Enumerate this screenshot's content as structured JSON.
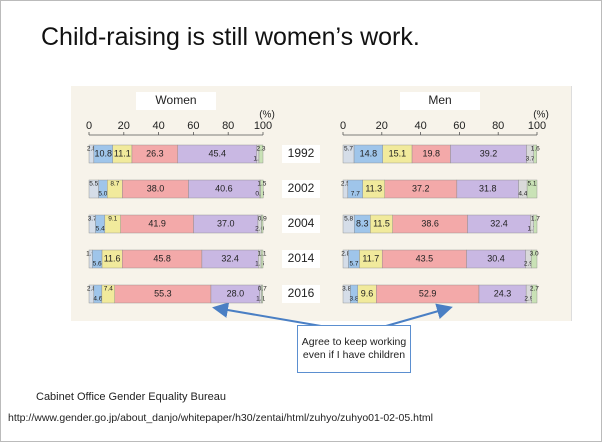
{
  "title": "Child-raising is still women’s work.",
  "annotation": "Agree to keep working even if I have children",
  "source": "Cabinet Office Gender Equality Bureau",
  "url": "http://www.gender.go.jp/about_danjo/whitepaper/h30/zentai/html/zuhyo/zuhyo01-02-05.html",
  "chart_data": {
    "type": "bar",
    "orientation": "horizontal",
    "stacked": true,
    "categories": [
      "1992",
      "2002",
      "2004",
      "2014",
      "2016"
    ],
    "xlim": [
      0,
      100
    ],
    "xticks": [
      0,
      20,
      40,
      60,
      80,
      100
    ],
    "unit": "(%)",
    "colors": [
      "#d5dde8",
      "#9fc5ea",
      "#f1ea9c",
      "#f3a9a9",
      "#c9b8e3",
      "#d9d9d9",
      "#c9e2b6"
    ],
    "panels": [
      {
        "title": "Women",
        "series": [
          {
            "values": [
              2.8,
              5.5,
              3.7,
              1.9,
              2.8
            ]
          },
          {
            "values": [
              10.8,
              5.0,
              5.4,
              5.6,
              4.6
            ],
            "value_labels": [
              "10.8",
              "5.0",
              "5.4",
              "5.6",
              "4.6"
            ]
          },
          {
            "values": [
              11.1,
              8.7,
              9.1,
              11.6,
              7.4
            ]
          },
          {
            "values": [
              26.3,
              38.0,
              41.9,
              45.8,
              55.3
            ],
            "value_labels": [
              "26.3",
              "38.0",
              "41.9",
              "45.8",
              "55.3"
            ]
          },
          {
            "values": [
              45.4,
              40.6,
              37.0,
              32.4,
              28.0
            ],
            "value_labels": [
              "45.4",
              "40.6",
              "37.0",
              "32.4",
              "28.0"
            ]
          },
          {
            "values": [
              1.3,
              0.8,
              2.0,
              1.6,
              1.1
            ],
            "value_labels": [
              "1.3",
              "0.8",
              "2.0",
              "1.6",
              "1.1"
            ]
          },
          {
            "values": [
              2.3,
              1.5,
              0.9,
              1.1,
              0.7
            ]
          }
        ]
      },
      {
        "title": "Men",
        "series": [
          {
            "values": [
              5.7,
              2.5,
              5.8,
              2.8,
              3.8
            ]
          },
          {
            "values": [
              14.8,
              7.7,
              8.3,
              5.7,
              3.8
            ]
          },
          {
            "values": [
              15.1,
              11.3,
              11.5,
              11.7,
              9.6
            ]
          },
          {
            "values": [
              19.8,
              37.2,
              38.6,
              43.5,
              52.9
            ]
          },
          {
            "values": [
              39.2,
              31.8,
              32.4,
              30.4,
              24.3
            ]
          },
          {
            "values": [
              3.7,
              4.4,
              1.7,
              2.9,
              2.9
            ]
          },
          {
            "values": [
              1.6,
              5.1,
              1.7,
              3.0,
              2.7
            ],
            "value_labels": [
              "1.6",
              "5.1",
              "1.7",
              "3.0",
              "2.7"
            ]
          }
        ]
      }
    ]
  }
}
